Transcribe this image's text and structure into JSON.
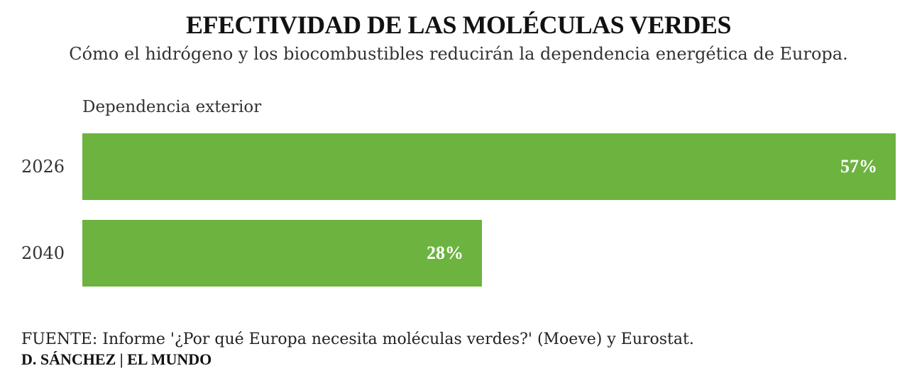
{
  "header": {
    "title": "EFECTIVIDAD DE LAS MOLÉCULAS VERDES",
    "subtitle": "Cómo el hidrógeno y los biocombustibles reducirán la dependencia energética de Europa."
  },
  "footer": {
    "source_prefix": "FUENTE:",
    "source_text": " Informe '¿Por qué Europa necesita moléculas verdes?' (Moeve) y Eurostat.",
    "credit": "D. SÁNCHEZ | EL MUNDO"
  },
  "colors": {
    "bar": "#6db33f",
    "bar_label": "#ffffff"
  },
  "chart_data": {
    "type": "bar",
    "orientation": "horizontal",
    "title": "EFECTIVIDAD DE LAS MOLÉCULAS VERDES",
    "subtitle": "Cómo el hidrógeno y los biocombustibles reducirán la dependencia energética de Europa.",
    "series_label": "Dependencia exterior",
    "categories": [
      "2026",
      "2040"
    ],
    "values": [
      57,
      28
    ],
    "value_labels": [
      "57%",
      "28%"
    ],
    "unit": "%",
    "xlim": [
      0,
      57
    ],
    "grid": false,
    "legend": "none"
  }
}
